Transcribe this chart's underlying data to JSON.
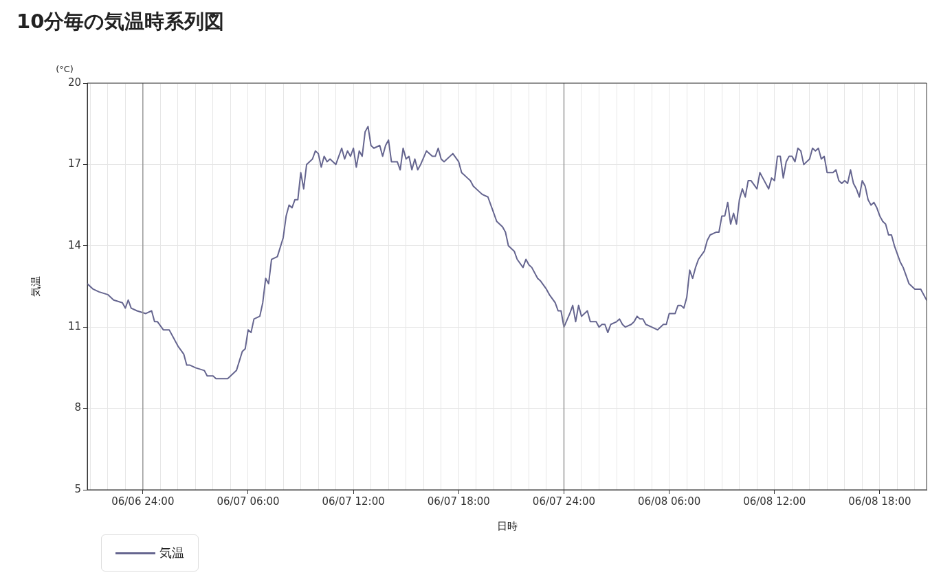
{
  "chart_data": {
    "type": "line",
    "title": "10分毎の気温時系列図",
    "xlabel": "日時",
    "ylabel": "気温",
    "annotations": [
      "(°C)"
    ],
    "legend": "bottom left",
    "grid": true,
    "marker": "none",
    "line_style": "solid",
    "xlim": [
      "--06-06T20:50",
      "--06-08T20:40"
    ],
    "ylim": [
      5,
      20
    ],
    "yticks": [
      5,
      8,
      11,
      14,
      17,
      20
    ],
    "xticks": [
      {
        "value": "--06-06T21:00",
        "label": null
      },
      {
        "value": "--06-06T22:00",
        "label": null
      },
      {
        "value": "--06-06T23:00",
        "label": null
      },
      {
        "value": "--06-07T00:00",
        "label": "06/06 24:00"
      },
      {
        "value": "--06-07T01:00",
        "label": null
      },
      {
        "value": "--06-07T02:00",
        "label": null
      },
      {
        "value": "--06-07T03:00",
        "label": null
      },
      {
        "value": "--06-07T04:00",
        "label": null
      },
      {
        "value": "--06-07T05:00",
        "label": null
      },
      {
        "value": "--06-07T06:00",
        "label": "06/07 06:00"
      },
      {
        "value": "--06-07T07:00",
        "label": null
      },
      {
        "value": "--06-07T08:00",
        "label": null
      },
      {
        "value": "--06-07T09:00",
        "label": null
      },
      {
        "value": "--06-07T10:00",
        "label": null
      },
      {
        "value": "--06-07T11:00",
        "label": null
      },
      {
        "value": "--06-07T12:00",
        "label": "06/07 12:00"
      },
      {
        "value": "--06-07T13:00",
        "label": null
      },
      {
        "value": "--06-07T14:00",
        "label": null
      },
      {
        "value": "--06-07T15:00",
        "label": null
      },
      {
        "value": "--06-07T16:00",
        "label": null
      },
      {
        "value": "--06-07T17:00",
        "label": null
      },
      {
        "value": "--06-07T18:00",
        "label": "06/07 18:00"
      },
      {
        "value": "--06-07T19:00",
        "label": null
      },
      {
        "value": "--06-07T20:00",
        "label": null
      },
      {
        "value": "--06-07T21:00",
        "label": null
      },
      {
        "value": "--06-07T22:00",
        "label": null
      },
      {
        "value": "--06-07T23:00",
        "label": null
      },
      {
        "value": "--06-08T00:00",
        "label": "06/07 24:00"
      },
      {
        "value": "--06-08T01:00",
        "label": null
      },
      {
        "value": "--06-08T02:00",
        "label": null
      },
      {
        "value": "--06-08T03:00",
        "label": null
      },
      {
        "value": "--06-08T04:00",
        "label": null
      },
      {
        "value": "--06-08T05:00",
        "label": null
      },
      {
        "value": "--06-08T06:00",
        "label": "06/08 06:00"
      },
      {
        "value": "--06-08T07:00",
        "label": null
      },
      {
        "value": "--06-08T08:00",
        "label": null
      },
      {
        "value": "--06-08T09:00",
        "label": null
      },
      {
        "value": "--06-08T10:00",
        "label": null
      },
      {
        "value": "--06-08T11:00",
        "label": null
      },
      {
        "value": "--06-08T12:00",
        "label": "06/08 12:00"
      },
      {
        "value": "--06-08T13:00",
        "label": null
      },
      {
        "value": "--06-08T14:00",
        "label": null
      },
      {
        "value": "--06-08T15:00",
        "label": null
      },
      {
        "value": "--06-08T16:00",
        "label": null
      },
      {
        "value": "--06-08T17:00",
        "label": null
      },
      {
        "value": "--06-08T18:00",
        "label": "06/08 18:00"
      },
      {
        "value": "--06-08T19:00",
        "label": null
      },
      {
        "value": "--06-08T20:00",
        "label": null
      }
    ],
    "ref_lines": [
      {
        "axis": "x",
        "value": "--06-07T00:00",
        "label": null,
        "color": "#999999"
      },
      {
        "axis": "x",
        "value": "--06-08T00:00",
        "label": null,
        "color": "#999999"
      }
    ],
    "series": [
      {
        "name": "気温",
        "color": "#65658f",
        "x": [
          "--06-06T20:50",
          "--06-06T21:10",
          "--06-06T21:30",
          "--06-06T22:00",
          "--06-06T22:20",
          "--06-06T22:50",
          "--06-06T23:00",
          "--06-06T23:10",
          "--06-06T23:20",
          "--06-06T23:40",
          "--06-07T00:10",
          "--06-07T00:30",
          "--06-07T00:40",
          "--06-07T00:50",
          "--06-07T01:10",
          "--06-07T01:30",
          "--06-07T02:00",
          "--06-07T02:20",
          "--06-07T02:30",
          "--06-07T02:40",
          "--06-07T03:00",
          "--06-07T03:30",
          "--06-07T03:40",
          "--06-07T04:00",
          "--06-07T04:10",
          "--06-07T04:20",
          "--06-07T04:50",
          "--06-07T05:20",
          "--06-07T05:40",
          "--06-07T05:50",
          "--06-07T06:00",
          "--06-07T06:10",
          "--06-07T06:20",
          "--06-07T06:40",
          "--06-07T06:50",
          "--06-07T07:00",
          "--06-07T07:10",
          "--06-07T07:20",
          "--06-07T07:40",
          "--06-07T08:00",
          "--06-07T08:10",
          "--06-07T08:20",
          "--06-07T08:30",
          "--06-07T08:40",
          "--06-07T08:50",
          "--06-07T09:00",
          "--06-07T09:10",
          "--06-07T09:20",
          "--06-07T09:40",
          "--06-07T09:50",
          "--06-07T10:00",
          "--06-07T10:10",
          "--06-07T10:20",
          "--06-07T10:30",
          "--06-07T10:40",
          "--06-07T11:00",
          "--06-07T11:20",
          "--06-07T11:30",
          "--06-07T11:40",
          "--06-07T11:50",
          "--06-07T12:00",
          "--06-07T12:10",
          "--06-07T12:20",
          "--06-07T12:30",
          "--06-07T12:40",
          "--06-07T12:50",
          "--06-07T13:00",
          "--06-07T13:10",
          "--06-07T13:30",
          "--06-07T13:40",
          "--06-07T13:50",
          "--06-07T14:00",
          "--06-07T14:10",
          "--06-07T14:30",
          "--06-07T14:40",
          "--06-07T14:50",
          "--06-07T15:00",
          "--06-07T15:10",
          "--06-07T15:20",
          "--06-07T15:30",
          "--06-07T15:40",
          "--06-07T15:50",
          "--06-07T16:10",
          "--06-07T16:30",
          "--06-07T16:40",
          "--06-07T16:50",
          "--06-07T17:00",
          "--06-07T17:10",
          "--06-07T17:40",
          "--06-07T18:00",
          "--06-07T18:10",
          "--06-07T18:30",
          "--06-07T18:40",
          "--06-07T18:50",
          "--06-07T19:10",
          "--06-07T19:20",
          "--06-07T19:40",
          "--06-07T20:00",
          "--06-07T20:10",
          "--06-07T20:30",
          "--06-07T20:40",
          "--06-07T20:50",
          "--06-07T21:10",
          "--06-07T21:20",
          "--06-07T21:40",
          "--06-07T21:50",
          "--06-07T22:00",
          "--06-07T22:10",
          "--06-07T22:30",
          "--06-07T22:40",
          "--06-07T23:00",
          "--06-07T23:10",
          "--06-07T23:30",
          "--06-07T23:40",
          "--06-07T23:50",
          "--06-08T00:00",
          "--06-08T00:20",
          "--06-08T00:30",
          "--06-08T00:40",
          "--06-08T00:50",
          "--06-08T01:00",
          "--06-08T01:20",
          "--06-08T01:30",
          "--06-08T01:50",
          "--06-08T02:00",
          "--06-08T02:10",
          "--06-08T02:20",
          "--06-08T02:30",
          "--06-08T02:40",
          "--06-08T03:00",
          "--06-08T03:10",
          "--06-08T03:20",
          "--06-08T03:30",
          "--06-08T03:50",
          "--06-08T04:00",
          "--06-08T04:10",
          "--06-08T04:20",
          "--06-08T04:30",
          "--06-08T04:40",
          "--06-08T05:00",
          "--06-08T05:20",
          "--06-08T05:40",
          "--06-08T05:50",
          "--06-08T06:00",
          "--06-08T06:20",
          "--06-08T06:30",
          "--06-08T06:40",
          "--06-08T06:50",
          "--06-08T07:00",
          "--06-08T07:10",
          "--06-08T07:20",
          "--06-08T07:30",
          "--06-08T07:40",
          "--06-08T08:00",
          "--06-08T08:10",
          "--06-08T08:20",
          "--06-08T08:40",
          "--06-08T08:50",
          "--06-08T09:00",
          "--06-08T09:10",
          "--06-08T09:20",
          "--06-08T09:30",
          "--06-08T09:40",
          "--06-08T09:50",
          "--06-08T10:00",
          "--06-08T10:10",
          "--06-08T10:20",
          "--06-08T10:30",
          "--06-08T10:40",
          "--06-08T11:00",
          "--06-08T11:10",
          "--06-08T11:20",
          "--06-08T11:40",
          "--06-08T11:50",
          "--06-08T12:00",
          "--06-08T12:10",
          "--06-08T12:20",
          "--06-08T12:30",
          "--06-08T12:40",
          "--06-08T12:50",
          "--06-08T13:00",
          "--06-08T13:10",
          "--06-08T13:20",
          "--06-08T13:30",
          "--06-08T13:40",
          "--06-08T14:00",
          "--06-08T14:10",
          "--06-08T14:20",
          "--06-08T14:30",
          "--06-08T14:40",
          "--06-08T14:50",
          "--06-08T15:00",
          "--06-08T15:20",
          "--06-08T15:30",
          "--06-08T15:40",
          "--06-08T15:50",
          "--06-08T16:00",
          "--06-08T16:10",
          "--06-08T16:20",
          "--06-08T16:30",
          "--06-08T16:40",
          "--06-08T16:50",
          "--06-08T17:00",
          "--06-08T17:10",
          "--06-08T17:20",
          "--06-08T17:30",
          "--06-08T17:40",
          "--06-08T17:50",
          "--06-08T18:00",
          "--06-08T18:10",
          "--06-08T18:20",
          "--06-08T18:30",
          "--06-08T18:40",
          "--06-08T18:50",
          "--06-08T19:00",
          "--06-08T19:10",
          "--06-08T19:20",
          "--06-08T19:30",
          "--06-08T19:40",
          "--06-08T20:00",
          "--06-08T20:20",
          "--06-08T20:40"
        ],
        "values": [
          12.6,
          12.4,
          12.3,
          12.2,
          12.0,
          11.9,
          11.7,
          12.0,
          11.7,
          11.6,
          11.5,
          11.6,
          11.2,
          11.2,
          10.9,
          10.9,
          10.3,
          10.0,
          9.6,
          9.6,
          9.5,
          9.4,
          9.2,
          9.2,
          9.1,
          9.1,
          9.1,
          9.4,
          10.1,
          10.2,
          10.9,
          10.8,
          11.3,
          11.4,
          11.9,
          12.8,
          12.6,
          13.5,
          13.6,
          14.3,
          15.1,
          15.5,
          15.4,
          15.7,
          15.7,
          16.7,
          16.1,
          17.0,
          17.2,
          17.5,
          17.4,
          16.9,
          17.3,
          17.1,
          17.2,
          17.0,
          17.6,
          17.2,
          17.5,
          17.3,
          17.6,
          16.9,
          17.5,
          17.3,
          18.2,
          18.4,
          17.7,
          17.6,
          17.7,
          17.3,
          17.7,
          17.9,
          17.1,
          17.1,
          16.8,
          17.6,
          17.2,
          17.3,
          16.8,
          17.2,
          16.8,
          17.0,
          17.5,
          17.3,
          17.3,
          17.6,
          17.2,
          17.1,
          17.4,
          17.1,
          16.7,
          16.5,
          16.4,
          16.2,
          16.0,
          15.9,
          15.8,
          15.2,
          14.9,
          14.7,
          14.5,
          14.0,
          13.8,
          13.5,
          13.2,
          13.5,
          13.3,
          13.2,
          12.8,
          12.7,
          12.4,
          12.2,
          11.9,
          11.6,
          11.6,
          11.0,
          11.5,
          11.8,
          11.2,
          11.8,
          11.4,
          11.6,
          11.2,
          11.2,
          11.0,
          11.1,
          11.1,
          10.8,
          11.1,
          11.2,
          11.3,
          11.1,
          11.0,
          11.1,
          11.2,
          11.4,
          11.3,
          11.3,
          11.1,
          11.0,
          10.9,
          11.1,
          11.1,
          11.5,
          11.5,
          11.8,
          11.8,
          11.7,
          12.1,
          13.1,
          12.8,
          13.2,
          13.5,
          13.8,
          14.2,
          14.4,
          14.5,
          14.5,
          15.1,
          15.1,
          15.6,
          14.8,
          15.2,
          14.8,
          15.7,
          16.1,
          15.8,
          16.4,
          16.4,
          16.1,
          16.7,
          16.5,
          16.1,
          16.5,
          16.4,
          17.3,
          17.3,
          16.5,
          17.1,
          17.3,
          17.3,
          17.1,
          17.6,
          17.5,
          17.0,
          17.2,
          17.6,
          17.5,
          17.6,
          17.2,
          17.3,
          16.7,
          16.7,
          16.8,
          16.4,
          16.3,
          16.4,
          16.3,
          16.8,
          16.3,
          16.1,
          15.8,
          16.4,
          16.2,
          15.7,
          15.5,
          15.6,
          15.4,
          15.1,
          14.9,
          14.8,
          14.4,
          14.4,
          14.0,
          13.7,
          13.4,
          13.2,
          12.9,
          12.6,
          12.4,
          12.4,
          12.0
        ]
      }
    ]
  }
}
